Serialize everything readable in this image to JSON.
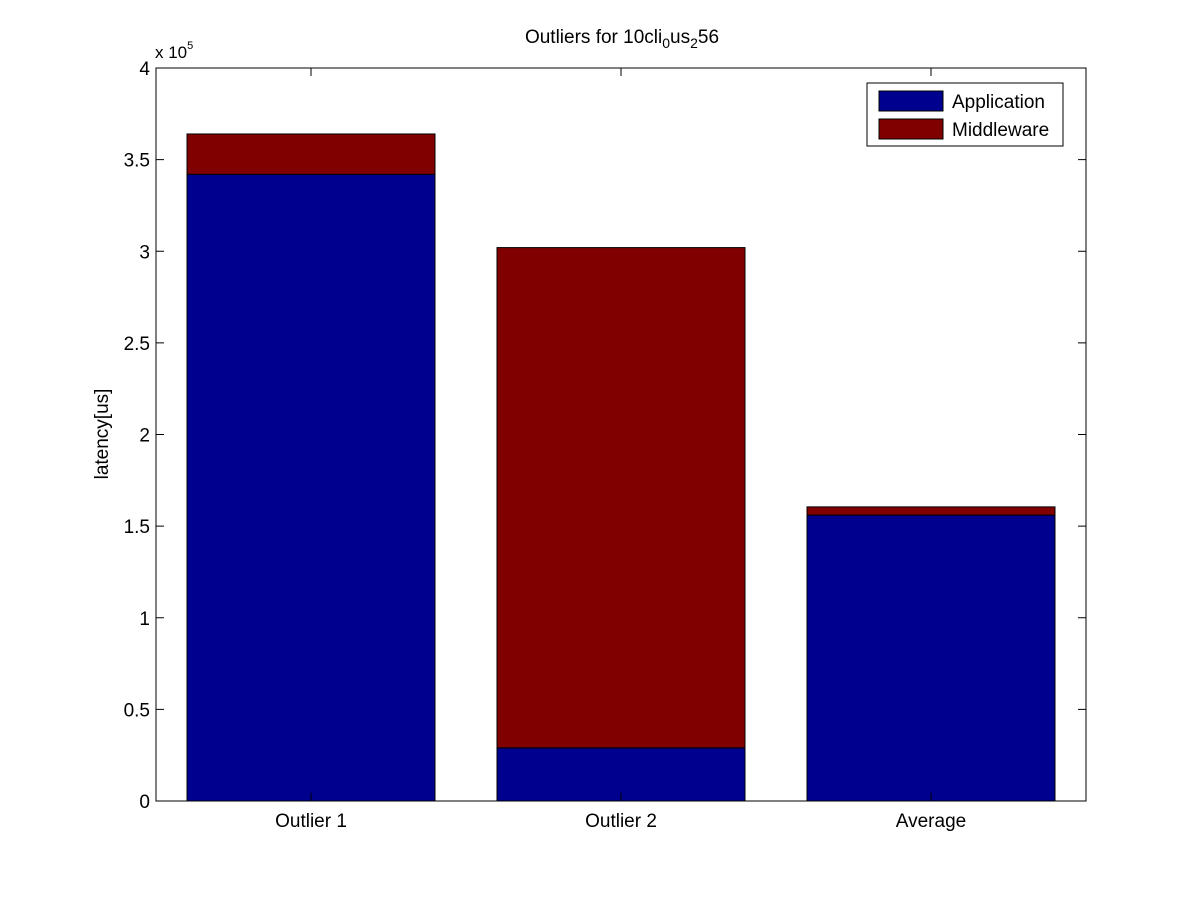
{
  "chart_data": {
    "type": "bar",
    "stacked": true,
    "title": {
      "prefix": "Outliers for 10cli",
      "sub1": "0",
      "mid": "us",
      "sub2": "2",
      "suffix": "56"
    },
    "xlabel": "",
    "ylabel": "latency[us]",
    "y_multiplier_label": {
      "base": "x 10",
      "exponent": "5"
    },
    "categories": [
      "Outlier 1",
      "Outlier 2",
      "Average"
    ],
    "series": [
      {
        "name": "Application",
        "color": "#00008f",
        "values": [
          342000,
          29000,
          156000
        ]
      },
      {
        "name": "Middleware",
        "color": "#800000",
        "values": [
          22000,
          273000,
          4500
        ]
      }
    ],
    "ylim": [
      0,
      400000
    ],
    "yticks": [
      0,
      50000,
      100000,
      150000,
      200000,
      250000,
      300000,
      350000,
      400000
    ],
    "ytick_labels": [
      "0",
      "0.5",
      "1",
      "1.5",
      "2",
      "2.5",
      "3",
      "3.5",
      "4"
    ],
    "legend_position": "top-right",
    "grid": false
  }
}
